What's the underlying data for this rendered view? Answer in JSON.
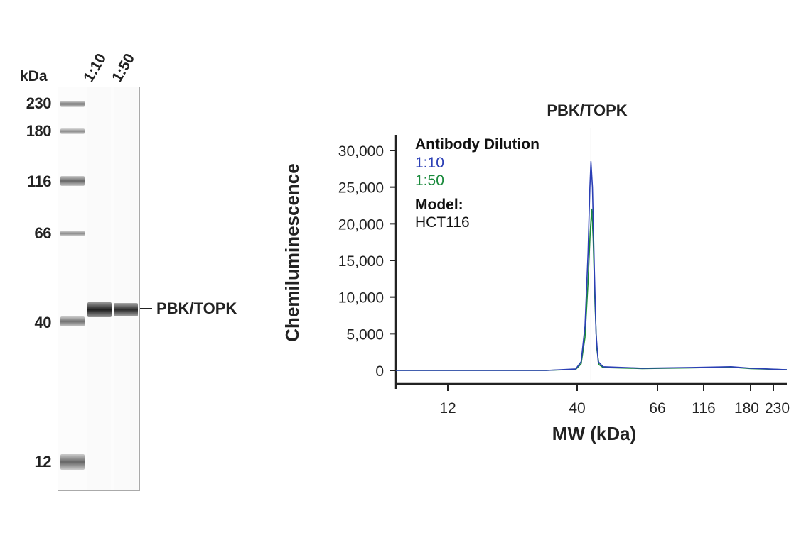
{
  "blot": {
    "unit_label": "kDa",
    "lanes": [
      "1:10",
      "1:50"
    ],
    "markers": [
      "230",
      "180",
      "116",
      "66",
      "40",
      "12"
    ],
    "band_label": "PBK/TOPK"
  },
  "chart_data": {
    "type": "line",
    "title": "PBK/TOPK",
    "xlabel": "MW (kDa)",
    "ylabel": "Chemiluminescence",
    "x_scale": "log-like (MW ladder)",
    "x_ticks": [
      "12",
      "40",
      "66",
      "116",
      "180",
      "230"
    ],
    "y_ticks": [
      "0",
      "5,000",
      "10,000",
      "15,000",
      "20,000",
      "25,000",
      "30,000"
    ],
    "ylim": [
      0,
      32000
    ],
    "reference_line_mw": 43.6,
    "legend": {
      "title": "Antibody Dilution",
      "model_label": "Model:",
      "model_value": "HCT116",
      "placement": "top-left"
    },
    "series": [
      {
        "name": "1:10",
        "color": "#2b3fb5",
        "points": [
          [
            7.4,
            0
          ],
          [
            30,
            0
          ],
          [
            39.5,
            200
          ],
          [
            41,
            1200
          ],
          [
            42,
            6000
          ],
          [
            42.8,
            16000
          ],
          [
            43.3,
            25000
          ],
          [
            43.6,
            28500
          ],
          [
            44,
            25000
          ],
          [
            44.5,
            14000
          ],
          [
            45,
            5000
          ],
          [
            45.6,
            1200
          ],
          [
            47,
            500
          ],
          [
            60,
            300
          ],
          [
            100,
            400
          ],
          [
            150,
            500
          ],
          [
            180,
            300
          ],
          [
            250,
            100
          ]
        ]
      },
      {
        "name": "1:50",
        "color": "#1a8a3c",
        "points": [
          [
            7.4,
            0
          ],
          [
            30,
            0
          ],
          [
            39.5,
            150
          ],
          [
            41,
            900
          ],
          [
            42,
            4500
          ],
          [
            42.8,
            12000
          ],
          [
            43.4,
            19000
          ],
          [
            43.8,
            22000
          ],
          [
            44.2,
            18000
          ],
          [
            44.7,
            9000
          ],
          [
            45.2,
            3000
          ],
          [
            45.8,
            800
          ],
          [
            47,
            400
          ],
          [
            60,
            250
          ],
          [
            100,
            350
          ],
          [
            150,
            450
          ],
          [
            180,
            250
          ],
          [
            250,
            100
          ]
        ]
      }
    ]
  }
}
